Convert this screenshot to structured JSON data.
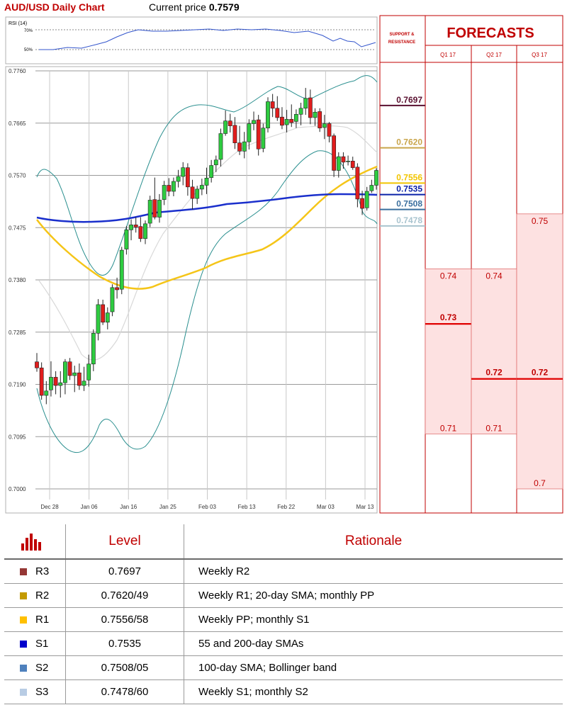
{
  "header": {
    "title": "AUD/USD Daily Chart",
    "price_label": "Current price",
    "price_value": "0.7579"
  },
  "rsi": {
    "label": "RSI (14)",
    "levels": [
      "70%",
      "50%"
    ]
  },
  "forecast_panel": {
    "title": "FORECASTS",
    "sr_label_1": "SUPPORT &",
    "sr_label_2": "RESISTANCE",
    "quarters": [
      "Q1 17",
      "Q2 17",
      "Q3 17"
    ]
  },
  "chart_data": {
    "type": "candlestick",
    "title": "AUD/USD Daily Chart",
    "ylim": [
      0.7,
      0.776
    ],
    "y_ticks": [
      "0.7760",
      "0.7665",
      "0.7570",
      "0.7475",
      "0.7380",
      "0.7285",
      "0.7190",
      "0.7095",
      "0.7000"
    ],
    "x_ticks": [
      "Dec 28",
      "Jan 06",
      "Jan 16",
      "Jan 25",
      "Feb 03",
      "Feb 13",
      "Feb 22",
      "Mar 03",
      "Mar 13"
    ],
    "candles": [
      [
        0.7231,
        0.7247,
        0.7213,
        0.722
      ],
      [
        0.722,
        0.723,
        0.7162,
        0.717
      ],
      [
        0.717,
        0.7196,
        0.7154,
        0.7178
      ],
      [
        0.718,
        0.7232,
        0.7168,
        0.7203
      ],
      [
        0.7203,
        0.7214,
        0.7172,
        0.7188
      ],
      [
        0.7188,
        0.7214,
        0.7166,
        0.7193
      ],
      [
        0.7193,
        0.7236,
        0.7172,
        0.7231
      ],
      [
        0.7231,
        0.7238,
        0.7198,
        0.7206
      ],
      [
        0.7206,
        0.7224,
        0.7176,
        0.7211
      ],
      [
        0.7211,
        0.7228,
        0.718,
        0.7188
      ],
      [
        0.7188,
        0.7222,
        0.7178,
        0.7196
      ],
      [
        0.7198,
        0.7244,
        0.7186,
        0.7227
      ],
      [
        0.7227,
        0.729,
        0.7214,
        0.7283
      ],
      [
        0.7283,
        0.7345,
        0.727,
        0.7335
      ],
      [
        0.7335,
        0.7344,
        0.7298,
        0.7303
      ],
      [
        0.7303,
        0.733,
        0.729,
        0.732
      ],
      [
        0.7322,
        0.7372,
        0.7314,
        0.7366
      ],
      [
        0.7366,
        0.7384,
        0.7346,
        0.7362
      ],
      [
        0.7363,
        0.744,
        0.7354,
        0.7434
      ],
      [
        0.7436,
        0.7478,
        0.7426,
        0.7471
      ],
      [
        0.7471,
        0.749,
        0.7452,
        0.748
      ],
      [
        0.748,
        0.7494,
        0.7466,
        0.7476
      ],
      [
        0.7477,
        0.7494,
        0.7449,
        0.7455
      ],
      [
        0.7455,
        0.7488,
        0.7445,
        0.7482
      ],
      [
        0.7483,
        0.7533,
        0.7476,
        0.7525
      ],
      [
        0.7526,
        0.7566,
        0.749,
        0.7494
      ],
      [
        0.7494,
        0.7536,
        0.7484,
        0.7525
      ],
      [
        0.7526,
        0.756,
        0.7516,
        0.7552
      ],
      [
        0.7552,
        0.7565,
        0.7532,
        0.7541
      ],
      [
        0.7541,
        0.7566,
        0.7532,
        0.7559
      ],
      [
        0.7559,
        0.758,
        0.7548,
        0.7568
      ],
      [
        0.7568,
        0.7594,
        0.7552,
        0.7584
      ],
      [
        0.7584,
        0.7592,
        0.7533,
        0.7549
      ],
      [
        0.7549,
        0.7562,
        0.7508,
        0.7528
      ],
      [
        0.7528,
        0.7551,
        0.7518,
        0.7545
      ],
      [
        0.7545,
        0.7564,
        0.7534,
        0.7552
      ],
      [
        0.7552,
        0.7584,
        0.7536,
        0.7565
      ],
      [
        0.7566,
        0.7598,
        0.7557,
        0.7588
      ],
      [
        0.7589,
        0.7606,
        0.7576,
        0.7598
      ],
      [
        0.7599,
        0.7655,
        0.7586,
        0.7646
      ],
      [
        0.7646,
        0.7688,
        0.7642,
        0.7669
      ],
      [
        0.7669,
        0.7682,
        0.7648,
        0.766
      ],
      [
        0.7661,
        0.7676,
        0.7618,
        0.7629
      ],
      [
        0.7629,
        0.766,
        0.7607,
        0.7614
      ],
      [
        0.7614,
        0.7649,
        0.7601,
        0.7631
      ],
      [
        0.7631,
        0.7672,
        0.7617,
        0.7664
      ],
      [
        0.7664,
        0.7686,
        0.7652,
        0.767
      ],
      [
        0.7671,
        0.768,
        0.7606,
        0.7618
      ],
      [
        0.7619,
        0.7664,
        0.7612,
        0.7656
      ],
      [
        0.7656,
        0.7712,
        0.7648,
        0.7704
      ],
      [
        0.7704,
        0.7718,
        0.7676,
        0.7692
      ],
      [
        0.7692,
        0.7714,
        0.7669,
        0.7675
      ],
      [
        0.7676,
        0.7694,
        0.7654,
        0.7661
      ],
      [
        0.7662,
        0.7689,
        0.7648,
        0.7672
      ],
      [
        0.7672,
        0.7699,
        0.7658,
        0.7666
      ],
      [
        0.7668,
        0.769,
        0.7656,
        0.7681
      ],
      [
        0.7681,
        0.7702,
        0.7661,
        0.7692
      ],
      [
        0.7692,
        0.7729,
        0.768,
        0.771
      ],
      [
        0.7711,
        0.7726,
        0.7663,
        0.7675
      ],
      [
        0.7675,
        0.7692,
        0.766,
        0.7685
      ],
      [
        0.7686,
        0.7692,
        0.7649,
        0.7656
      ],
      [
        0.7657,
        0.768,
        0.7636,
        0.7664
      ],
      [
        0.7664,
        0.7667,
        0.763,
        0.7641
      ],
      [
        0.7642,
        0.7646,
        0.7567,
        0.7579
      ],
      [
        0.7579,
        0.7612,
        0.7566,
        0.7604
      ],
      [
        0.7604,
        0.7612,
        0.7582,
        0.7594
      ],
      [
        0.7595,
        0.7606,
        0.7588,
        0.7596
      ],
      [
        0.7596,
        0.7604,
        0.758,
        0.7584
      ],
      [
        0.7585,
        0.7592,
        0.7512,
        0.7527
      ],
      [
        0.7528,
        0.7542,
        0.7498,
        0.751
      ],
      [
        0.7511,
        0.7549,
        0.7506,
        0.7541
      ],
      [
        0.7542,
        0.7562,
        0.7538,
        0.7552
      ],
      [
        0.7552,
        0.7583,
        0.7544,
        0.7579
      ]
    ],
    "sr_levels": [
      {
        "value": "0.7697",
        "color": "#5a1030"
      },
      {
        "value": "0.7620",
        "color": "#c9a54a"
      },
      {
        "value": "0.7556",
        "color": "#f2c500"
      },
      {
        "value": "0.7535",
        "color": "#0b22a8"
      },
      {
        "value": "0.7508",
        "color": "#3a6f9e"
      },
      {
        "value": "0.7478",
        "color": "#a9c4cf"
      }
    ],
    "forecasts": [
      {
        "quarter": "Q1 17",
        "high": 0.74,
        "mid": 0.73,
        "low": 0.71,
        "labels": [
          "0.74",
          "0.73",
          "0.71"
        ]
      },
      {
        "quarter": "Q2 17",
        "high": 0.74,
        "mid": 0.72,
        "low": 0.71,
        "labels": [
          "0.74",
          "0.72",
          "0.71"
        ]
      },
      {
        "quarter": "Q3 17",
        "high": 0.75,
        "mid": 0.72,
        "low": 0.7,
        "labels": [
          "0.75",
          "0.72",
          "0.7"
        ]
      }
    ]
  },
  "table": {
    "headers": [
      "Level",
      "Rationale"
    ],
    "rows": [
      {
        "name": "R3",
        "level": "0.7697",
        "rationale": "Weekly R2",
        "color": "#953735"
      },
      {
        "name": "R2",
        "level": "0.7620/49",
        "rationale": "Weekly R1; 20-day SMA; monthly PP",
        "color": "#c49a00"
      },
      {
        "name": "R1",
        "level": "0.7556/58",
        "rationale": "Weekly PP; monthly S1",
        "color": "#ffc000"
      },
      {
        "name": "S1",
        "level": "0.7535",
        "rationale": "55 and 200-day SMAs",
        "color": "#0000cc"
      },
      {
        "name": "S2",
        "level": "0.7508/05",
        "rationale": "100-day SMA; Bollinger band",
        "color": "#4f81bd"
      },
      {
        "name": "S3",
        "level": "0.7478/60",
        "rationale": "Weekly S1; monthly S2",
        "color": "#b8cce4"
      }
    ]
  }
}
